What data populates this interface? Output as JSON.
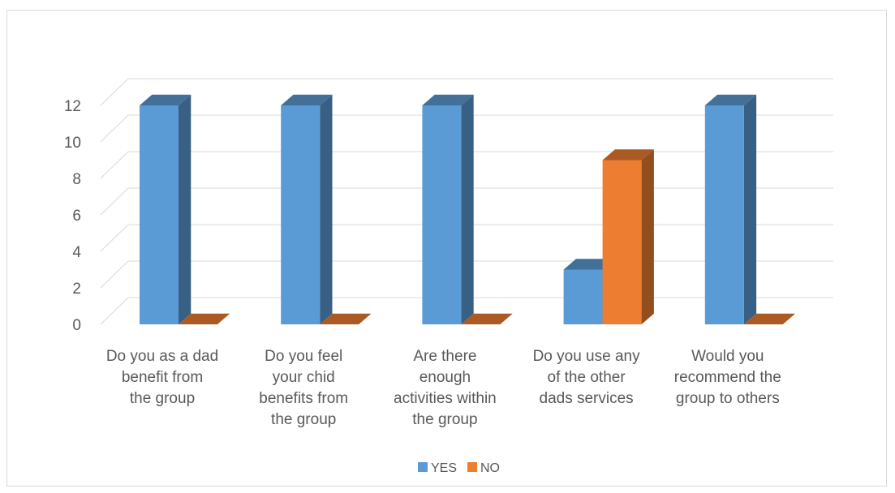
{
  "chart_data": {
    "type": "bar",
    "title": "",
    "xlabel": "",
    "ylabel": "",
    "ylim": [
      0,
      12
    ],
    "yticks": [
      0,
      2,
      4,
      6,
      8,
      10,
      12
    ],
    "grid": true,
    "legend_position": "bottom",
    "categories": [
      [
        "Do you as a dad",
        "benefit from",
        "the group"
      ],
      [
        "Do you feel",
        "your chid",
        "benefits from",
        "the group"
      ],
      [
        "Are there",
        "enough",
        "activities within",
        "the group"
      ],
      [
        "Do you use any",
        "of the other",
        "dads services"
      ],
      [
        "Would you",
        "recommend the",
        "group to others"
      ]
    ],
    "series": [
      {
        "name": "YES",
        "color": "#5b9bd5",
        "values": [
          12,
          12,
          12,
          3,
          12
        ]
      },
      {
        "name": "NO",
        "color": "#ed7d31",
        "values": [
          0,
          0,
          0,
          9,
          0
        ]
      }
    ]
  }
}
